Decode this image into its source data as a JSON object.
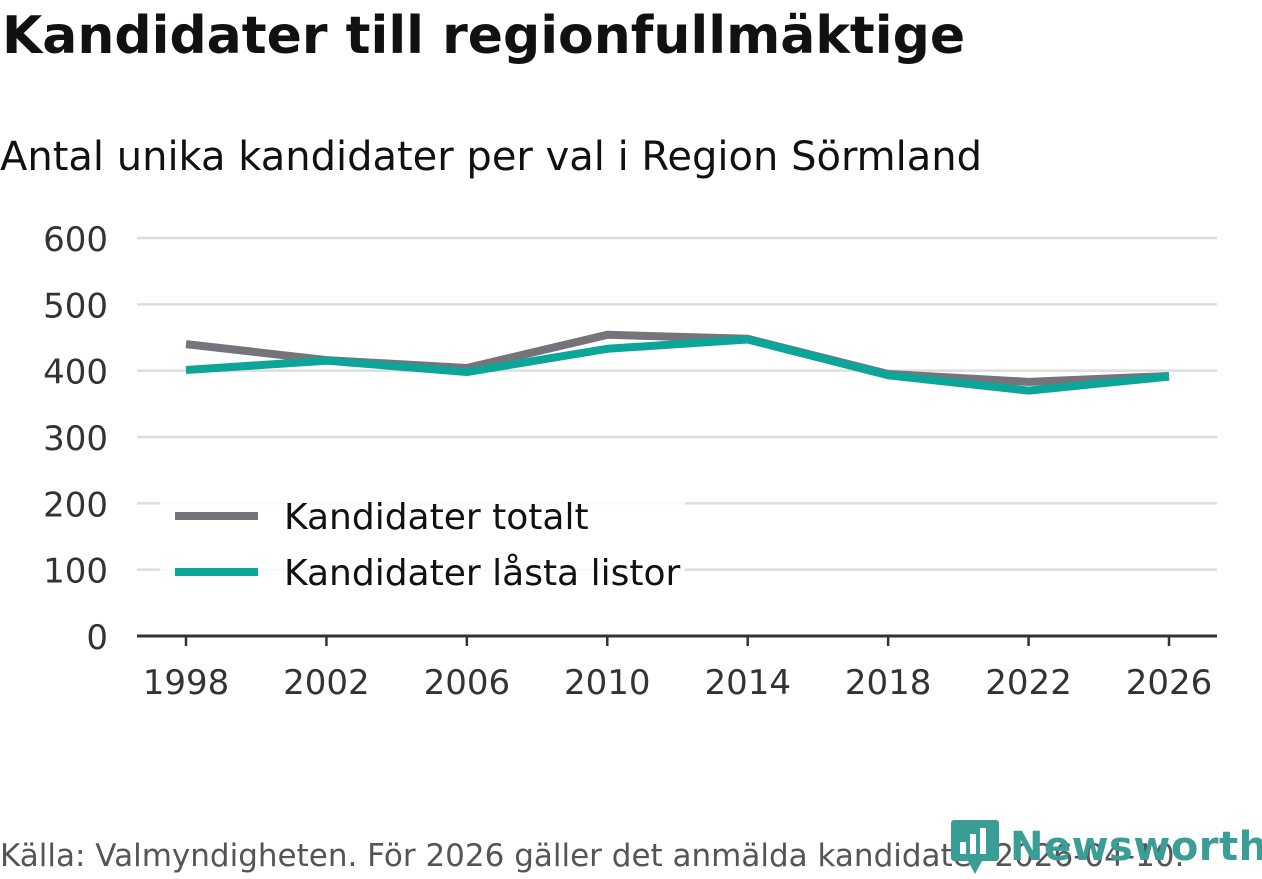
{
  "header": {
    "title": "Kandidater till regionfullmäktige",
    "subtitle": "Antal unika kandidater per val i Region Sörmland"
  },
  "footer": {
    "source": "Källa: Valmyndigheten. För 2026 gäller det anmälda kandidater 2026-04-10.",
    "brand": "Newsworthy"
  },
  "colors": {
    "series_total": "#76737a",
    "series_locked": "#0ca59a",
    "grid": "#dddddd",
    "axis": "#333333",
    "brand": "#3a9e96"
  },
  "chart_data": {
    "type": "line",
    "title": "Kandidater till regionfullmäktige",
    "subtitle": "Antal unika kandidater per val i Region Sörmland",
    "xlabel": "",
    "ylabel": "",
    "x": [
      "1998",
      "2002",
      "2006",
      "2010",
      "2014",
      "2018",
      "2022",
      "2026"
    ],
    "ylim": [
      0,
      600
    ],
    "yticks": [
      0,
      100,
      200,
      300,
      400,
      500,
      600
    ],
    "grid": true,
    "legend_position": "bottom-left",
    "series": [
      {
        "name": "Kandidater totalt",
        "values": [
          440,
          416,
          404,
          454,
          448,
          395,
          383,
          392
        ]
      },
      {
        "name": "Kandidater låsta listor",
        "values": [
          401,
          415,
          398,
          433,
          447,
          393,
          370,
          391
        ]
      }
    ]
  }
}
